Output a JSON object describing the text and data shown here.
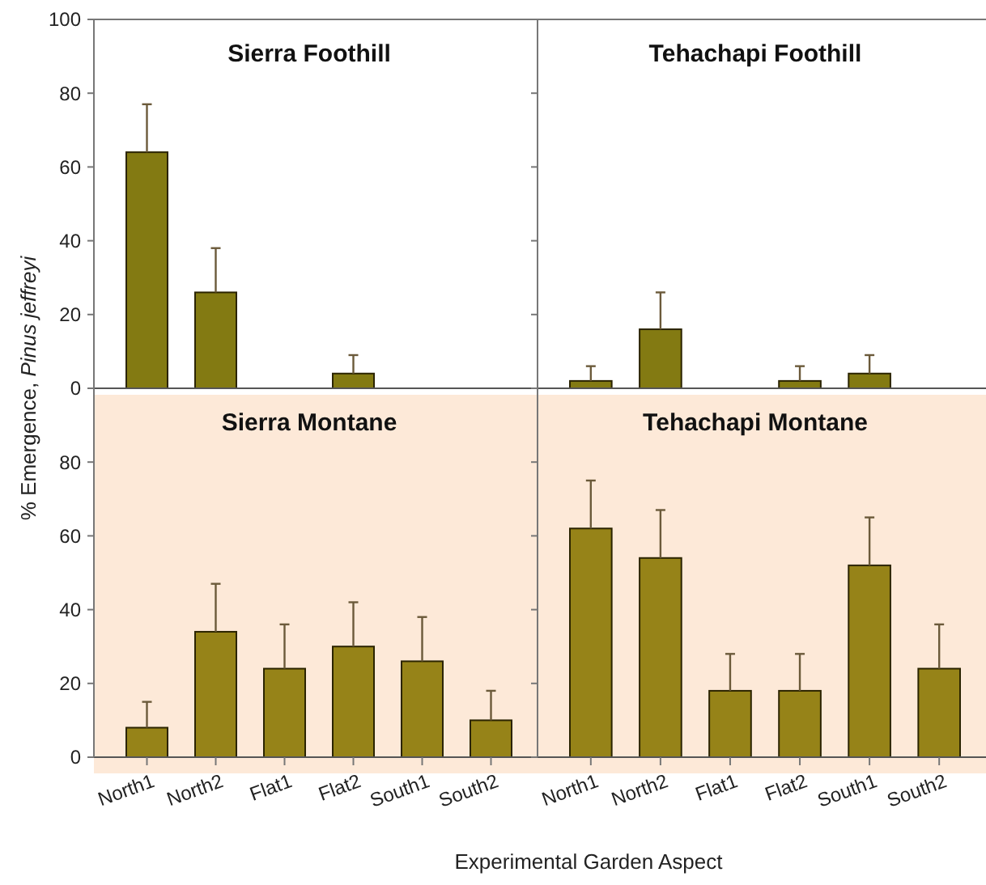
{
  "chart_data": [
    {
      "type": "bar",
      "title": "Sierra Foothill",
      "ylabel": "% Emergence, Pinus jeffreyi",
      "categories": [
        "North1",
        "North2",
        "Flat1",
        "Flat2",
        "South1",
        "South2"
      ],
      "values": [
        64,
        26,
        0,
        4,
        0,
        0
      ],
      "errors": [
        [
          64,
          77
        ],
        [
          26,
          38
        ],
        null,
        [
          4,
          9
        ],
        null,
        null
      ],
      "color": "#837a12",
      "ylim": [
        0,
        100
      ],
      "yticks": [
        0,
        20,
        40,
        60,
        80,
        100
      ],
      "tick_labels": "y",
      "grid": false
    },
    {
      "type": "bar",
      "title": "Tehachapi Foothill",
      "categories": [
        "North1",
        "North2",
        "Flat1",
        "Flat2",
        "South1",
        "South2"
      ],
      "values": [
        2,
        16,
        0,
        2,
        4,
        0
      ],
      "errors": [
        [
          2,
          6
        ],
        [
          16,
          26
        ],
        null,
        [
          2,
          6
        ],
        [
          4,
          9
        ],
        null
      ],
      "color": "#837a12",
      "ylim": [
        0,
        100
      ],
      "yticks": [
        0,
        20,
        40,
        60,
        80,
        100
      ],
      "tick_labels": false,
      "grid": false
    },
    {
      "type": "bar",
      "title": "Sierra Montane",
      "xlabel": "Experimental Garden Aspect",
      "categories": [
        "North1",
        "North2",
        "Flat1",
        "Flat2",
        "South1",
        "South2"
      ],
      "values": [
        8,
        34,
        24,
        30,
        26,
        10
      ],
      "errors": [
        [
          8,
          15
        ],
        [
          34,
          47
        ],
        [
          24,
          36
        ],
        [
          30,
          42
        ],
        [
          26,
          38
        ],
        [
          10,
          18
        ]
      ],
      "color": "#968318",
      "ylim": [
        0,
        100
      ],
      "yticks": [
        0,
        20,
        40,
        60,
        80
      ],
      "grid": false
    },
    {
      "type": "bar",
      "title": "Tehachapi Montane",
      "categories": [
        "North1",
        "North2",
        "Flat1",
        "Flat2",
        "South1",
        "South2"
      ],
      "values": [
        62,
        54,
        18,
        18,
        52,
        24
      ],
      "errors": [
        [
          62,
          75
        ],
        [
          54,
          67
        ],
        [
          18,
          28
        ],
        [
          18,
          28
        ],
        [
          52,
          65
        ],
        [
          24,
          36
        ]
      ],
      "color": "#968318",
      "ylim": [
        0,
        100
      ],
      "yticks": [
        0,
        20,
        40,
        60,
        80
      ],
      "tick_labels": "x",
      "grid": false
    }
  ]
}
